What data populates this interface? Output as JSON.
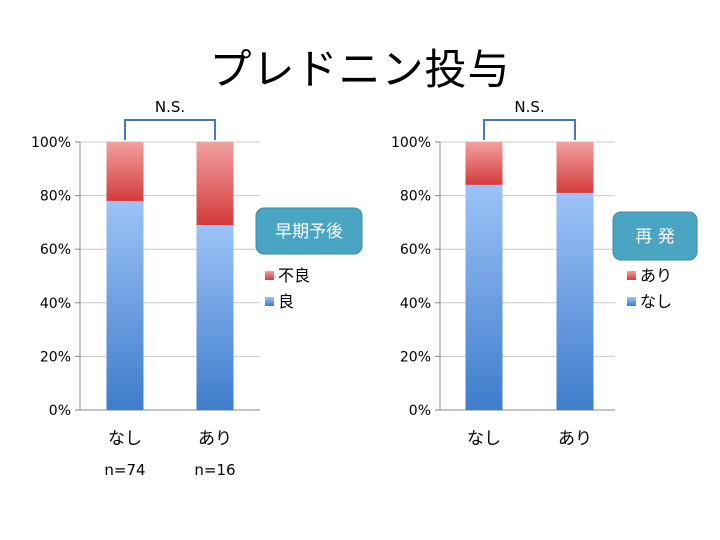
{
  "title": "プレドニン投与",
  "colors": {
    "good_top": "#9cc3f6",
    "good_bottom": "#3f7ccc",
    "bad_top": "#f2a0a0",
    "bad_bottom": "#d43b3b",
    "box_fill": "#4aa5c2",
    "bracket": "#4a78b4",
    "grid": "#c8c8c8"
  },
  "chart_data": [
    {
      "type": "bar",
      "stacked": true,
      "percent": true,
      "box_label": "早期予後",
      "significance": "N.S.",
      "categories": [
        "なし",
        "あり"
      ],
      "sample_sizes": [
        "n=74",
        "n=16"
      ],
      "yticks": [
        "0%",
        "20%",
        "40%",
        "60%",
        "80%",
        "100%"
      ],
      "ylim": [
        0,
        100
      ],
      "legend": [
        "不良",
        "良"
      ],
      "series": [
        {
          "name": "良",
          "values": [
            78,
            69
          ]
        },
        {
          "name": "不良",
          "values": [
            22,
            31
          ]
        }
      ]
    },
    {
      "type": "bar",
      "stacked": true,
      "percent": true,
      "box_label": "再 発",
      "significance": "N.S.",
      "categories": [
        "なし",
        "あり"
      ],
      "yticks": [
        "0%",
        "20%",
        "40%",
        "60%",
        "80%",
        "100%"
      ],
      "ylim": [
        0,
        100
      ],
      "legend": [
        "あり",
        "なし"
      ],
      "series": [
        {
          "name": "なし",
          "values": [
            84,
            81
          ]
        },
        {
          "name": "あり",
          "values": [
            16,
            19
          ]
        }
      ]
    }
  ]
}
